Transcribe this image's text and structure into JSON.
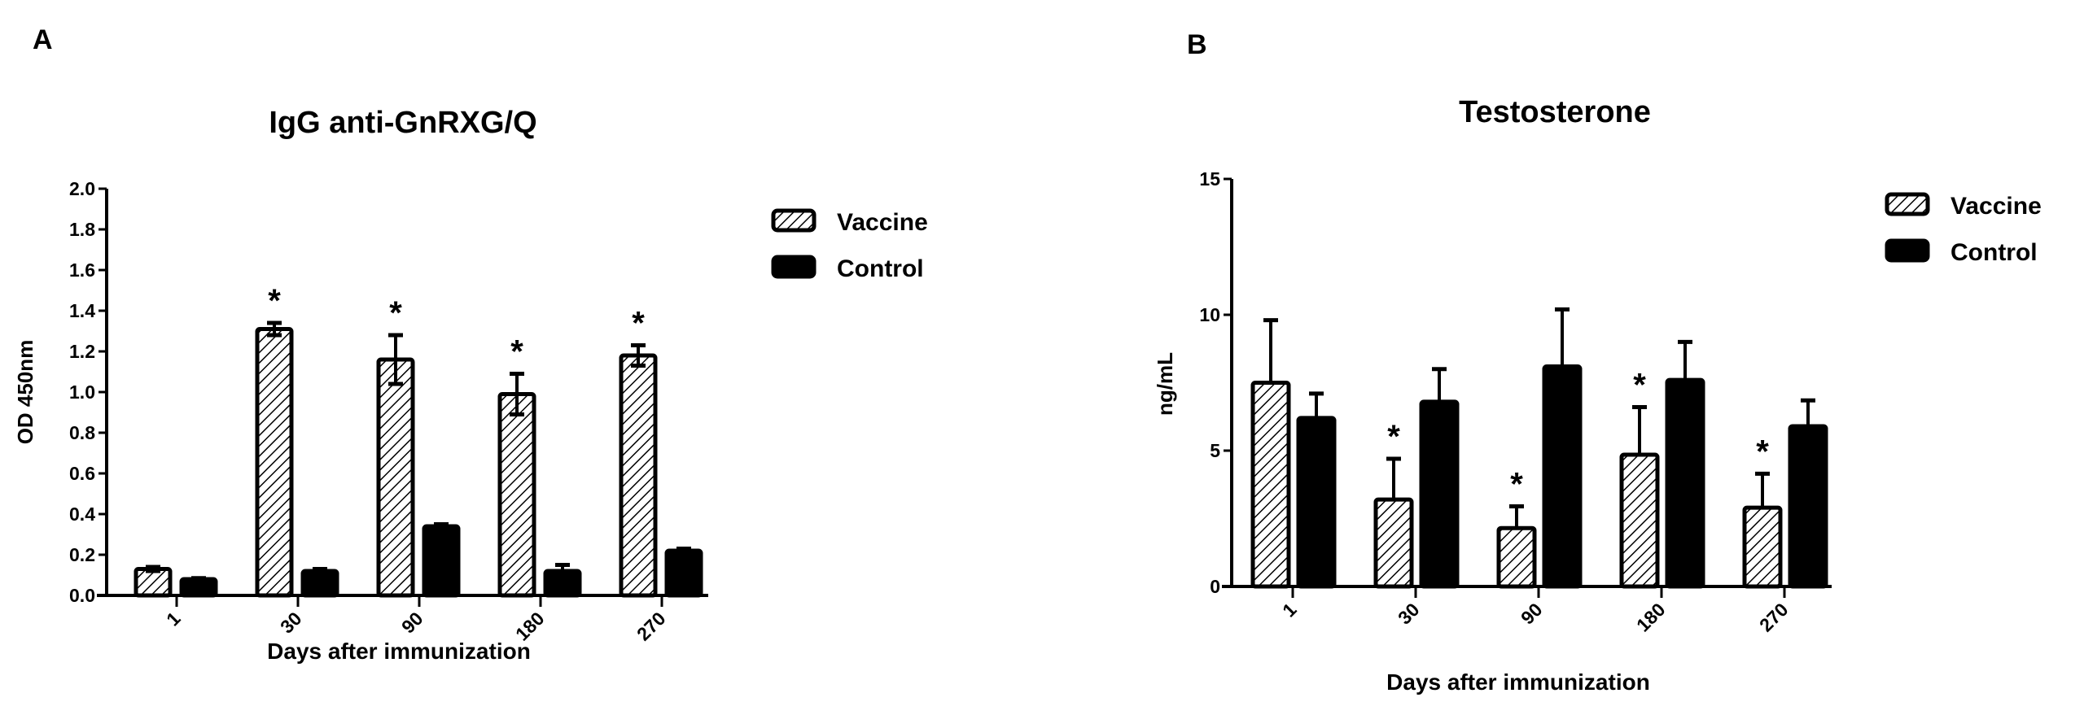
{
  "chart_data": [
    {
      "panel_label": "A",
      "type": "bar",
      "title": "IgG anti-GnRXG/Q",
      "xlabel": "Days after immunization",
      "ylabel": "OD 450nm",
      "categories": [
        "1",
        "30",
        "90",
        "180",
        "270"
      ],
      "ylim": [
        0,
        2.0
      ],
      "yticks": [
        "0.0",
        "0.2",
        "0.4",
        "0.6",
        "0.8",
        "1.0",
        "1.2",
        "1.4",
        "1.6",
        "1.8",
        "2.0"
      ],
      "grid": false,
      "legend_position": "right",
      "series": [
        {
          "name": "Vaccine",
          "fill": "hatched",
          "values": [
            0.13,
            1.31,
            1.16,
            0.99,
            1.18
          ],
          "errors": [
            0.01,
            0.03,
            0.12,
            0.1,
            0.05
          ]
        },
        {
          "name": "Control",
          "fill": "#000000",
          "values": [
            0.08,
            0.12,
            0.34,
            0.12,
            0.22
          ],
          "errors": [
            0.005,
            0.01,
            0.01,
            0.03,
            0.01
          ]
        }
      ],
      "significance_marker": "*",
      "significant_vaccine": [
        false,
        true,
        true,
        true,
        true
      ]
    },
    {
      "panel_label": "B",
      "type": "bar",
      "title": "Testosterone",
      "xlabel": "Days after immunization",
      "ylabel": "ng/mL",
      "categories": [
        "1",
        "30",
        "90",
        "180",
        "270"
      ],
      "ylim": [
        0,
        15
      ],
      "yticks": [
        "0",
        "5",
        "10",
        "15"
      ],
      "grid": false,
      "legend_position": "right",
      "series": [
        {
          "name": "Vaccine",
          "fill": "hatched",
          "values": [
            7.5,
            3.2,
            2.15,
            4.85,
            2.9
          ],
          "errors": [
            2.3,
            1.5,
            0.8,
            1.75,
            1.25
          ]
        },
        {
          "name": "Control",
          "fill": "#000000",
          "values": [
            6.2,
            6.8,
            8.1,
            7.6,
            5.9
          ],
          "errors": [
            0.9,
            1.2,
            2.1,
            1.4,
            0.95
          ]
        }
      ],
      "significance_marker": "*",
      "significant_vaccine": [
        false,
        true,
        true,
        true,
        true
      ]
    }
  ]
}
